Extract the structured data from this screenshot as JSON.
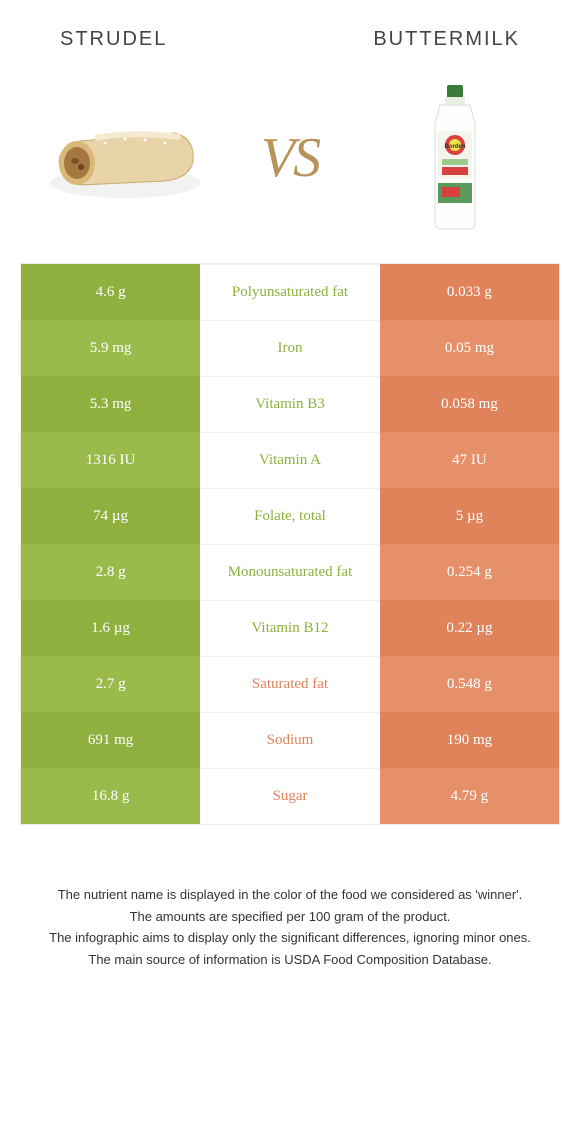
{
  "header": {
    "left": "STRUDEL",
    "right": "BUTTERMILK"
  },
  "vs": {
    "v": "V",
    "s": "S"
  },
  "colors": {
    "green_a": "#8fb03e",
    "green_b": "#9abb4c",
    "orange_a": "#e0835a",
    "orange_b": "#e59069",
    "text_green": "#8fb03e",
    "text_orange": "#e0835a"
  },
  "rows": [
    {
      "left": "4.6 g",
      "mid": "Polyunsaturated fat",
      "right": "0.033 g",
      "mid_color": "green",
      "shade": "a"
    },
    {
      "left": "5.9 mg",
      "mid": "Iron",
      "right": "0.05 mg",
      "mid_color": "green",
      "shade": "b"
    },
    {
      "left": "5.3 mg",
      "mid": "Vitamin B3",
      "right": "0.058 mg",
      "mid_color": "green",
      "shade": "a"
    },
    {
      "left": "1316 IU",
      "mid": "Vitamin A",
      "right": "47 IU",
      "mid_color": "green",
      "shade": "b"
    },
    {
      "left": "74 µg",
      "mid": "Folate, total",
      "right": "5 µg",
      "mid_color": "green",
      "shade": "a"
    },
    {
      "left": "2.8 g",
      "mid": "Monounsaturated fat",
      "right": "0.254 g",
      "mid_color": "green",
      "shade": "b"
    },
    {
      "left": "1.6 µg",
      "mid": "Vitamin B12",
      "right": "0.22 µg",
      "mid_color": "green",
      "shade": "a"
    },
    {
      "left": "2.7 g",
      "mid": "Saturated fat",
      "right": "0.548 g",
      "mid_color": "orange",
      "shade": "b"
    },
    {
      "left": "691 mg",
      "mid": "Sodium",
      "right": "190 mg",
      "mid_color": "orange",
      "shade": "a"
    },
    {
      "left": "16.8 g",
      "mid": "Sugar",
      "right": "4.79 g",
      "mid_color": "orange",
      "shade": "b"
    }
  ],
  "footnotes": [
    "The nutrient name is displayed in the color of the food we considered as 'winner'.",
    "The amounts are specified per 100 gram of the product.",
    "The infographic aims to display only the significant differences, ignoring minor ones.",
    "The main source of information is USDA Food Composition Database."
  ]
}
